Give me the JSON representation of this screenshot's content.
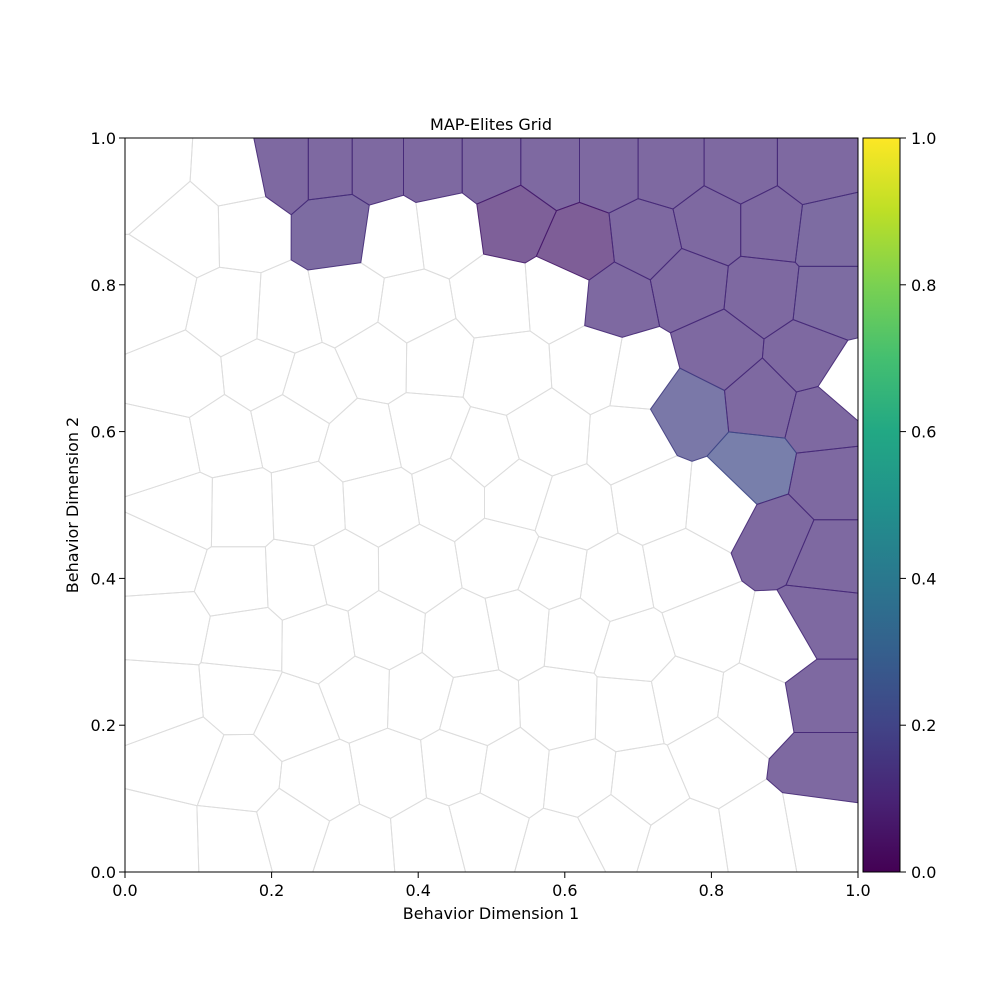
{
  "chart_data": {
    "type": "heatmap",
    "title": "MAP-Elites Grid",
    "xlabel": "Behavior Dimension 1",
    "ylabel": "Behavior Dimension 2",
    "xlim": [
      0.0,
      1.0
    ],
    "ylim": [
      0.0,
      1.0
    ],
    "x_ticks": [
      "0.0",
      "0.2",
      "0.4",
      "0.6",
      "0.8",
      "1.0"
    ],
    "y_ticks": [
      "0.0",
      "0.2",
      "0.4",
      "0.6",
      "0.8",
      "1.0"
    ],
    "colorbar": {
      "colormap": "viridis",
      "range": [
        0.0,
        1.0
      ],
      "ticks": [
        "0.0",
        "0.2",
        "0.4",
        "0.6",
        "0.8",
        "1.0"
      ]
    },
    "cell_style": {
      "empty_edge_color": "#dddddd",
      "filled_alpha": 0.7
    },
    "filled_cells": [
      {
        "x": 0.22,
        "y": 0.96,
        "value": 0.12
      },
      {
        "x": 0.28,
        "y": 0.96,
        "value": 0.12
      },
      {
        "x": 0.34,
        "y": 0.96,
        "value": 0.12
      },
      {
        "x": 0.42,
        "y": 0.96,
        "value": 0.12
      },
      {
        "x": 0.5,
        "y": 0.96,
        "value": 0.12
      },
      {
        "x": 0.58,
        "y": 0.96,
        "value": 0.12
      },
      {
        "x": 0.66,
        "y": 0.96,
        "value": 0.12
      },
      {
        "x": 0.74,
        "y": 0.96,
        "value": 0.12
      },
      {
        "x": 0.84,
        "y": 0.96,
        "value": 0.12
      },
      {
        "x": 0.94,
        "y": 0.96,
        "value": 0.12
      },
      {
        "x": 0.29,
        "y": 0.88,
        "value": 0.13
      },
      {
        "x": 0.53,
        "y": 0.89,
        "value": 0.08
      },
      {
        "x": 0.62,
        "y": 0.85,
        "value": 0.07
      },
      {
        "x": 0.71,
        "y": 0.86,
        "value": 0.12
      },
      {
        "x": 0.8,
        "y": 0.88,
        "value": 0.12
      },
      {
        "x": 0.88,
        "y": 0.88,
        "value": 0.12
      },
      {
        "x": 0.96,
        "y": 0.87,
        "value": 0.13
      },
      {
        "x": 0.67,
        "y": 0.78,
        "value": 0.12
      },
      {
        "x": 0.77,
        "y": 0.8,
        "value": 0.12
      },
      {
        "x": 0.87,
        "y": 0.79,
        "value": 0.12
      },
      {
        "x": 0.96,
        "y": 0.78,
        "value": 0.13
      },
      {
        "x": 0.81,
        "y": 0.71,
        "value": 0.12
      },
      {
        "x": 0.93,
        "y": 0.7,
        "value": 0.12
      },
      {
        "x": 0.77,
        "y": 0.63,
        "value": 0.18
      },
      {
        "x": 0.87,
        "y": 0.64,
        "value": 0.12
      },
      {
        "x": 0.95,
        "y": 0.62,
        "value": 0.12
      },
      {
        "x": 0.86,
        "y": 0.55,
        "value": 0.22
      },
      {
        "x": 0.96,
        "y": 0.53,
        "value": 0.12
      },
      {
        "x": 0.89,
        "y": 0.46,
        "value": 0.12
      },
      {
        "x": 0.96,
        "y": 0.43,
        "value": 0.12
      },
      {
        "x": 0.95,
        "y": 0.34,
        "value": 0.12
      },
      {
        "x": 0.95,
        "y": 0.24,
        "value": 0.12
      },
      {
        "x": 0.95,
        "y": 0.14,
        "value": 0.12
      }
    ]
  }
}
